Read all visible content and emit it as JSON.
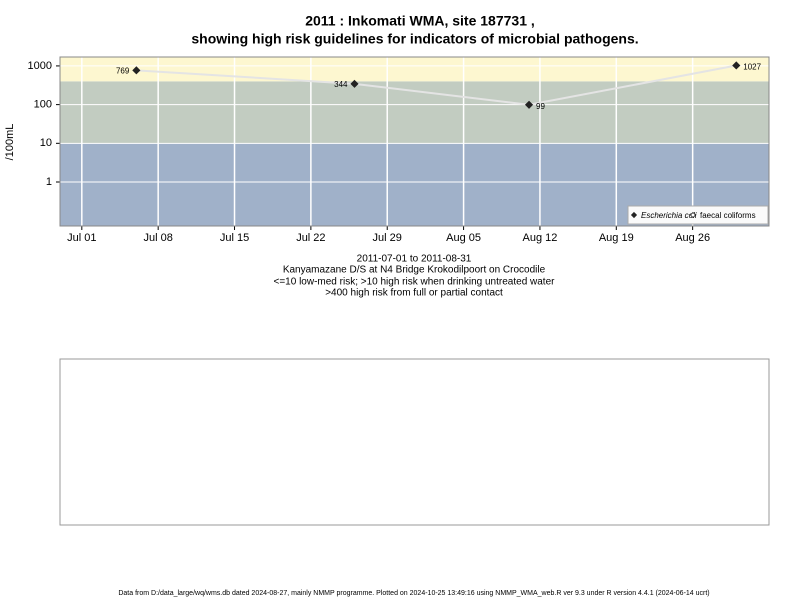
{
  "chart_data": {
    "type": "line",
    "title": [
      "2011 : Inkomati WMA, site 187731 ,",
      "showing high risk guidelines for indicators of microbial pathogens."
    ],
    "y_label": "/100mL",
    "subtitle": [
      "2011-07-01 to 2011-08-31",
      "Kanyamazane D/S at N4 Bridge Krokodilpoort on Crocodile",
      "<=10 low-med risk; >10 high risk when drinking untreated water",
      ">400 high risk from full or partial contact"
    ],
    "footer": "Data from D:/data_large/wq/wms.db dated 2024-08-27, mainly NMMP programme. Plotted on 2024-10-25 13:49:16 using NMMP_WMA_web.R ver 9.3 under R version 4.4.1 (2024-06-14 ucrt)",
    "x": [
      "07-06",
      "07-26",
      "08-11",
      "08-30"
    ],
    "series": [
      {
        "name": "Escherichia coli",
        "color": "#222222",
        "line_color": "#e4e4e4",
        "values": [
          769,
          344,
          99,
          1027
        ]
      },
      {
        "name": "faecal coliforms",
        "color": "#222222",
        "values": [
          null,
          null,
          null,
          null
        ]
      }
    ],
    "xlim": [
      "06-29",
      "09-02"
    ],
    "xticks": [
      {
        "value": "07-01",
        "label": "Jul 01"
      },
      {
        "value": "07-08",
        "label": "Jul 08"
      },
      {
        "value": "07-15",
        "label": "Jul 15"
      },
      {
        "value": "07-22",
        "label": "Jul 22"
      },
      {
        "value": "07-29",
        "label": "Jul 29"
      },
      {
        "value": "08-05",
        "label": "Aug 05"
      },
      {
        "value": "08-12",
        "label": "Aug 12"
      },
      {
        "value": "08-19",
        "label": "Aug 19"
      },
      {
        "value": "08-26",
        "label": "Aug 26"
      }
    ],
    "ylim": [
      0.073,
      1700
    ],
    "yticks": [
      1,
      10,
      100,
      1000
    ],
    "log_y": true,
    "grid": true,
    "bands": [
      {
        "max": 10,
        "color": "#a0b1c9"
      },
      {
        "max": 400,
        "color": "#c2ccc1"
      },
      {
        "max": null,
        "color": "#fdf7d0"
      }
    ],
    "legend": "bottom-right"
  }
}
